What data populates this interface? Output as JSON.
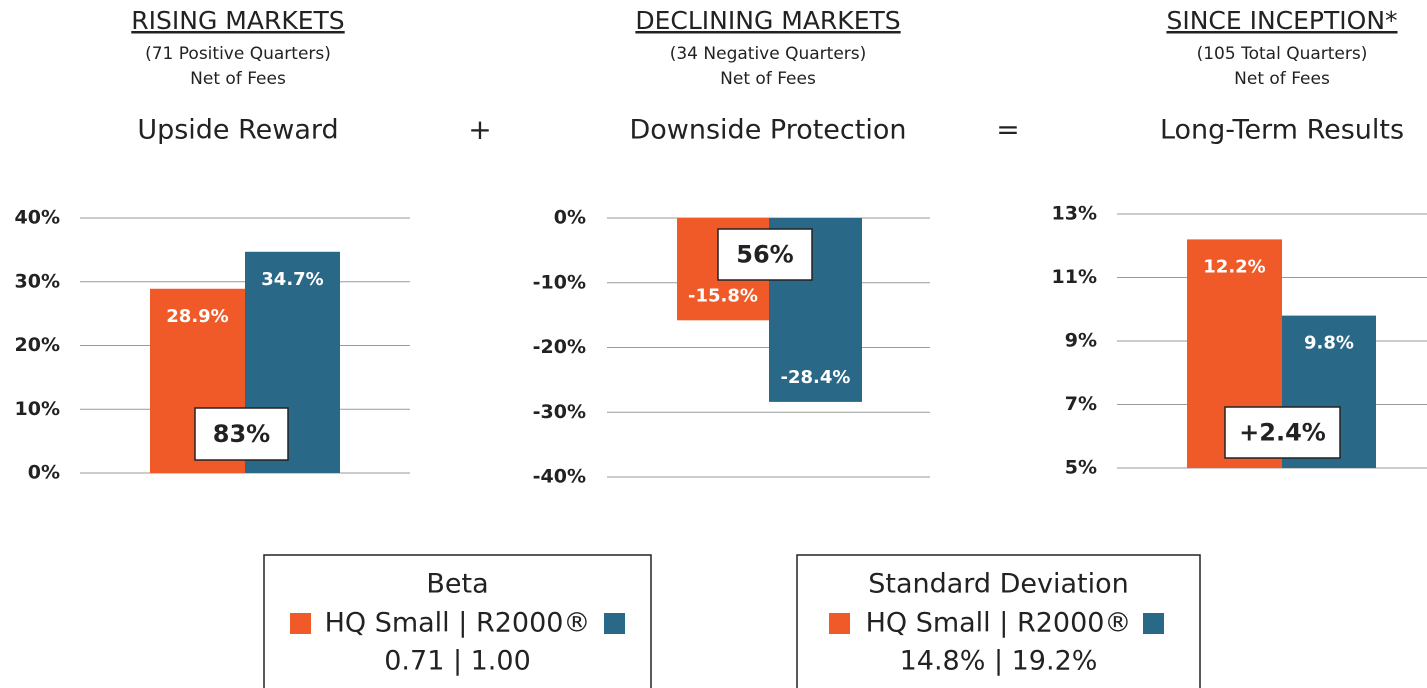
{
  "chart_data": [
    {
      "type": "bar",
      "title": "RISING MARKETS",
      "subtitle": [
        "(71 Positive Quarters)",
        "Net of Fees"
      ],
      "heading": "Upside Reward",
      "categories": [
        null,
        null
      ],
      "values": [
        28.9,
        34.7
      ],
      "value_labels": [
        "28.9%",
        "34.7%"
      ],
      "colors": [
        "#f05a28",
        "#2a6887"
      ],
      "annotation": "83%",
      "ylim": [
        0,
        40
      ],
      "yticks": [
        {
          "value": 0,
          "label": "0%"
        },
        {
          "value": 10,
          "label": "10%"
        },
        {
          "value": 20,
          "label": "20%"
        },
        {
          "value": 30,
          "label": "30%"
        },
        {
          "value": 40,
          "label": "40%"
        }
      ],
      "grid": true
    },
    {
      "type": "bar",
      "title": "DECLINING MARKETS",
      "subtitle": [
        "(34 Negative Quarters)",
        "Net of Fees"
      ],
      "heading": "Downside Protection",
      "categories": [
        null,
        null
      ],
      "values": [
        -15.8,
        -28.4
      ],
      "value_labels": [
        "-15.8%",
        "-28.4%"
      ],
      "colors": [
        "#f05a28",
        "#2a6887"
      ],
      "annotation": "56%",
      "ylim": [
        -40,
        0
      ],
      "yticks": [
        {
          "value": -40,
          "label": "-40%"
        },
        {
          "value": -30,
          "label": "-30%"
        },
        {
          "value": -20,
          "label": "-20%"
        },
        {
          "value": -10,
          "label": "-10%"
        },
        {
          "value": 0,
          "label": "0%"
        }
      ],
      "grid": true
    },
    {
      "type": "bar",
      "title": "SINCE INCEPTION*",
      "subtitle": [
        "(105 Total Quarters)",
        "Net of Fees"
      ],
      "heading": "Long-Term Results",
      "categories": [
        null,
        null
      ],
      "values": [
        12.2,
        9.8
      ],
      "value_labels": [
        "12.2%",
        "9.8%"
      ],
      "colors": [
        "#f05a28",
        "#2a6887"
      ],
      "annotation": "+2.4%",
      "ylim": [
        5,
        13
      ],
      "yticks": [
        {
          "value": 5,
          "label": "5%"
        },
        {
          "value": 7,
          "label": "7%"
        },
        {
          "value": 9,
          "label": "9%"
        },
        {
          "value": 11,
          "label": "11%"
        },
        {
          "value": 13,
          "label": "13%"
        }
      ],
      "grid": true
    }
  ],
  "operators": [
    "+",
    "="
  ],
  "stats": [
    {
      "title": "Beta",
      "legend": "HQ Small | R2000®",
      "values": "0.71 | 1.00"
    },
    {
      "title": "Standard Deviation",
      "legend": "HQ Small | R2000®",
      "values": "14.8% | 19.2%"
    }
  ]
}
